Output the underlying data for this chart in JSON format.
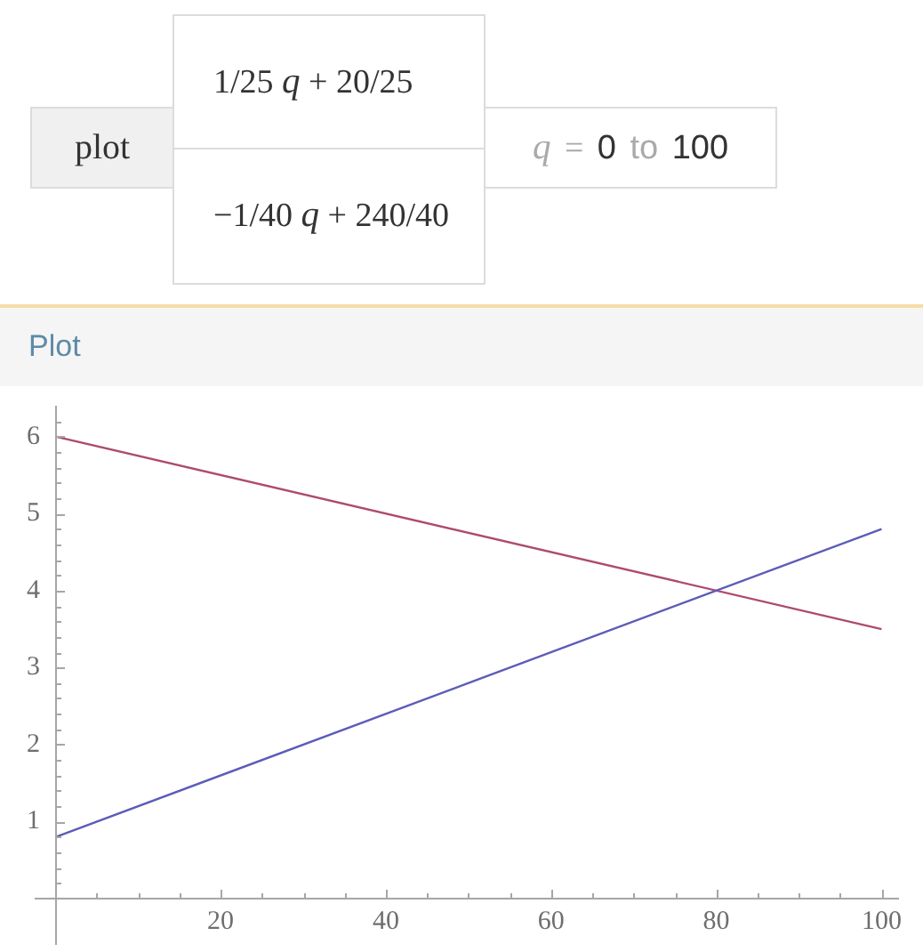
{
  "chart_data": {
    "type": "line",
    "title": "Plot",
    "annotations": [
      "plot",
      "1/25 q + 20/25",
      "−1/40 q + 240/40",
      "q = 0 to 100"
    ],
    "x": [
      0,
      100
    ],
    "series": [
      {
        "color": "#5c5cb8",
        "values": [
          0.8,
          4.8
        ]
      },
      {
        "color": "#ae4a70",
        "values": [
          6,
          3.5
        ]
      }
    ],
    "xlim": [
      -2.4,
      102
    ],
    "ylim": [
      -0.6,
      6.4
    ],
    "xticks": [
      {
        "value": 5,
        "label": null
      },
      {
        "value": 10,
        "label": null
      },
      {
        "value": 15,
        "label": null
      },
      20,
      {
        "value": 25,
        "label": null
      },
      {
        "value": 30,
        "label": null
      },
      {
        "value": 35,
        "label": null
      },
      40,
      {
        "value": 45,
        "label": null
      },
      {
        "value": 50,
        "label": null
      },
      {
        "value": 55,
        "label": null
      },
      60,
      {
        "value": 65,
        "label": null
      },
      {
        "value": 70,
        "label": null
      },
      {
        "value": 75,
        "label": null
      },
      80,
      {
        "value": 85,
        "label": null
      },
      {
        "value": 90,
        "label": null
      },
      {
        "value": 95,
        "label": null
      },
      100
    ],
    "yticks": [
      {
        "value": 0.2,
        "label": null
      },
      {
        "value": 0.4,
        "label": null
      },
      {
        "value": 0.6,
        "label": null
      },
      {
        "value": 0.8,
        "label": null
      },
      1,
      {
        "value": 1.2,
        "label": null
      },
      {
        "value": 1.4,
        "label": null
      },
      {
        "value": 1.6,
        "label": null
      },
      {
        "value": 1.8,
        "label": null
      },
      2,
      {
        "value": 2.2,
        "label": null
      },
      {
        "value": 2.4,
        "label": null
      },
      {
        "value": 2.6,
        "label": null
      },
      {
        "value": 2.8,
        "label": null
      },
      3,
      {
        "value": 3.2,
        "label": null
      },
      {
        "value": 3.4,
        "label": null
      },
      {
        "value": 3.6,
        "label": null
      },
      {
        "value": 3.8,
        "label": null
      },
      4,
      {
        "value": 4.2,
        "label": null
      },
      {
        "value": 4.4,
        "label": null
      },
      {
        "value": 4.6,
        "label": null
      },
      {
        "value": 4.8,
        "label": null
      },
      5,
      {
        "value": 5.2,
        "label": null
      },
      {
        "value": 5.4,
        "label": null
      },
      {
        "value": 5.6,
        "label": null
      },
      {
        "value": 5.8,
        "label": null
      },
      6,
      {
        "value": 6.2,
        "label": null
      }
    ]
  }
}
